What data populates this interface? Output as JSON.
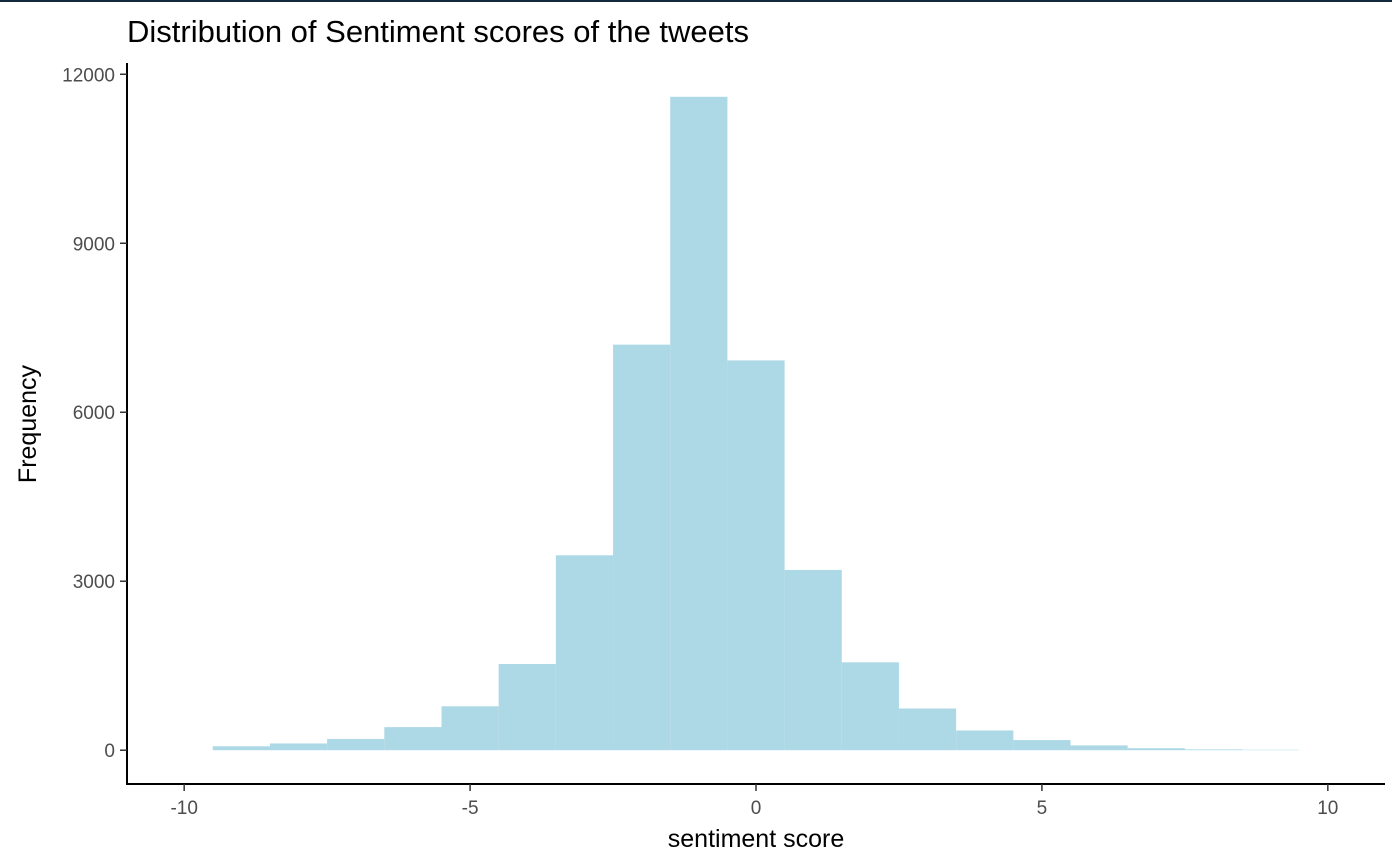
{
  "chart_data": {
    "type": "bar",
    "title": "Distribution of Sentiment scores of the tweets",
    "xlabel": "sentiment score",
    "ylabel": "Frequency",
    "bin_width": 1,
    "bins": [
      {
        "center": -9,
        "count": 70
      },
      {
        "center": -8,
        "count": 120
      },
      {
        "center": -7,
        "count": 200
      },
      {
        "center": -6,
        "count": 410
      },
      {
        "center": -5,
        "count": 780
      },
      {
        "center": -4,
        "count": 1530
      },
      {
        "center": -3,
        "count": 3460
      },
      {
        "center": -2,
        "count": 7200
      },
      {
        "center": -1,
        "count": 11600
      },
      {
        "center": 0,
        "count": 6920
      },
      {
        "center": 1,
        "count": 3200
      },
      {
        "center": 2,
        "count": 1560
      },
      {
        "center": 3,
        "count": 740
      },
      {
        "center": 4,
        "count": 350
      },
      {
        "center": 5,
        "count": 180
      },
      {
        "center": 6,
        "count": 85
      },
      {
        "center": 7,
        "count": 35
      },
      {
        "center": 8,
        "count": 15
      },
      {
        "center": 9,
        "count": 8
      }
    ],
    "xlim": [
      -11,
      11
    ],
    "ylim": [
      -600,
      12200
    ],
    "x_ticks": [
      -10,
      -5,
      0,
      5,
      10
    ],
    "x_tick_labels": [
      "-10",
      "-5",
      "0",
      "5",
      "10"
    ],
    "y_ticks": [
      0,
      3000,
      6000,
      9000,
      12000
    ],
    "y_tick_labels": [
      "0",
      "3000",
      "6000",
      "9000",
      "12000"
    ],
    "bar_color": "#add8e6",
    "grid": false
  }
}
